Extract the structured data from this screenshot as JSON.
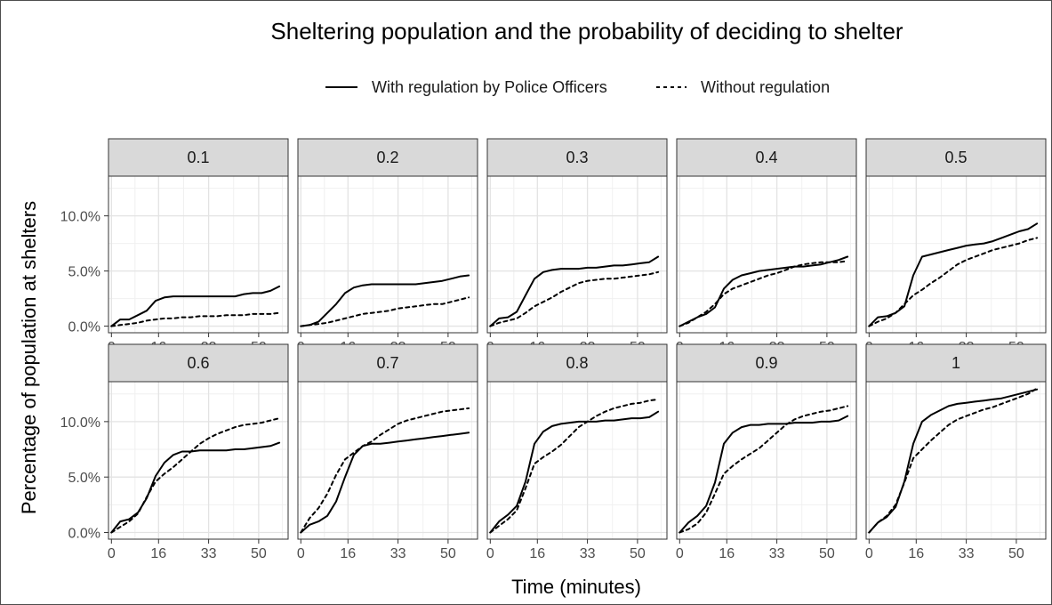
{
  "chart_data": {
    "type": "line",
    "title": "Sheltering population and the probability of deciding to shelter",
    "xlabel": "Time (minutes)",
    "ylabel": "Percentage of population at shelters",
    "x_ticks": [
      0,
      16,
      33,
      50
    ],
    "y_ticks": [
      0,
      5,
      10
    ],
    "y_tick_labels": [
      "0.0%",
      "5.0%",
      "10.0%"
    ],
    "xlim": [
      -1,
      60
    ],
    "ylim": [
      -0.6,
      13.6
    ],
    "grid": true,
    "legend_position": "top",
    "series_styles": [
      {
        "name": "With regulation by Police Officers",
        "dash": "solid",
        "color": "#000000"
      },
      {
        "name": "Without regulation",
        "dash": "dashed",
        "color": "#000000"
      }
    ],
    "x": [
      0,
      3,
      6,
      9,
      12,
      15,
      18,
      21,
      24,
      27,
      30,
      33,
      36,
      39,
      42,
      45,
      48,
      51,
      54,
      57
    ],
    "panels": [
      {
        "label": "0.1",
        "series": [
          {
            "name": "With regulation by Police Officers",
            "values": [
              0,
              0.6,
              0.6,
              1.0,
              1.4,
              2.3,
              2.6,
              2.7,
              2.7,
              2.7,
              2.7,
              2.7,
              2.7,
              2.7,
              2.7,
              2.9,
              3.0,
              3.0,
              3.2,
              3.6
            ]
          },
          {
            "name": "Without regulation",
            "values": [
              0,
              0.1,
              0.2,
              0.3,
              0.5,
              0.6,
              0.7,
              0.7,
              0.8,
              0.8,
              0.9,
              0.9,
              0.9,
              1.0,
              1.0,
              1.0,
              1.1,
              1.1,
              1.1,
              1.2
            ]
          }
        ]
      },
      {
        "label": "0.2",
        "series": [
          {
            "name": "With regulation by Police Officers",
            "values": [
              0,
              0.1,
              0.4,
              1.2,
              2.0,
              3.0,
              3.5,
              3.7,
              3.8,
              3.8,
              3.8,
              3.8,
              3.8,
              3.8,
              3.9,
              4.0,
              4.1,
              4.3,
              4.5,
              4.6
            ]
          },
          {
            "name": "Without regulation",
            "values": [
              0,
              0.1,
              0.2,
              0.3,
              0.5,
              0.7,
              0.9,
              1.1,
              1.2,
              1.3,
              1.4,
              1.6,
              1.7,
              1.8,
              1.9,
              2.0,
              2.0,
              2.2,
              2.4,
              2.6
            ]
          }
        ]
      },
      {
        "label": "0.3",
        "series": [
          {
            "name": "With regulation by Police Officers",
            "values": [
              0,
              0.7,
              0.8,
              1.3,
              2.8,
              4.3,
              4.9,
              5.1,
              5.2,
              5.2,
              5.2,
              5.3,
              5.3,
              5.4,
              5.5,
              5.5,
              5.6,
              5.7,
              5.8,
              6.3
            ]
          },
          {
            "name": "Without regulation",
            "values": [
              0,
              0.3,
              0.5,
              0.7,
              1.2,
              1.8,
              2.2,
              2.6,
              3.1,
              3.5,
              3.9,
              4.1,
              4.2,
              4.3,
              4.3,
              4.4,
              4.5,
              4.6,
              4.7,
              4.9
            ]
          }
        ]
      },
      {
        "label": "0.4",
        "series": [
          {
            "name": "With regulation by Police Officers",
            "values": [
              0,
              0.4,
              0.8,
              1.1,
              1.7,
              3.4,
              4.2,
              4.6,
              4.8,
              5.0,
              5.1,
              5.2,
              5.3,
              5.4,
              5.4,
              5.5,
              5.6,
              5.8,
              6.0,
              6.3
            ]
          },
          {
            "name": "Without regulation",
            "values": [
              0,
              0.3,
              0.8,
              1.3,
              2.0,
              2.9,
              3.4,
              3.7,
              4.0,
              4.3,
              4.6,
              4.8,
              5.1,
              5.4,
              5.6,
              5.7,
              5.8,
              5.8,
              5.8,
              5.9
            ]
          }
        ]
      },
      {
        "label": "0.5",
        "series": [
          {
            "name": "With regulation by Police Officers",
            "values": [
              0,
              0.8,
              0.9,
              1.2,
              1.8,
              4.6,
              6.3,
              6.5,
              6.7,
              6.9,
              7.1,
              7.3,
              7.4,
              7.5,
              7.7,
              8.0,
              8.3,
              8.6,
              8.8,
              9.3
            ]
          },
          {
            "name": "Without regulation",
            "values": [
              0,
              0.4,
              0.7,
              1.2,
              2.0,
              2.8,
              3.3,
              3.9,
              4.4,
              5.0,
              5.6,
              6.0,
              6.3,
              6.6,
              6.9,
              7.1,
              7.3,
              7.5,
              7.8,
              8.0
            ]
          }
        ]
      },
      {
        "label": "0.6",
        "series": [
          {
            "name": "With regulation by Police Officers",
            "values": [
              0,
              1.0,
              1.2,
              1.8,
              3.1,
              5.1,
              6.3,
              7.0,
              7.3,
              7.3,
              7.4,
              7.4,
              7.4,
              7.4,
              7.5,
              7.5,
              7.6,
              7.7,
              7.8,
              8.1
            ]
          },
          {
            "name": "Without regulation",
            "values": [
              0,
              0.5,
              1.0,
              1.7,
              3.2,
              4.6,
              5.3,
              5.9,
              6.6,
              7.3,
              8.0,
              8.5,
              8.9,
              9.2,
              9.5,
              9.7,
              9.8,
              9.9,
              10.1,
              10.3
            ]
          }
        ]
      },
      {
        "label": "0.7",
        "series": [
          {
            "name": "With regulation by Police Officers",
            "values": [
              0,
              0.7,
              1.0,
              1.5,
              2.8,
              5.0,
              7.0,
              7.8,
              8.0,
              8.0,
              8.1,
              8.2,
              8.3,
              8.4,
              8.5,
              8.6,
              8.7,
              8.8,
              8.9,
              9.0
            ]
          },
          {
            "name": "Without regulation",
            "values": [
              0,
              1.3,
              2.2,
              3.5,
              5.2,
              6.6,
              7.2,
              7.8,
              8.2,
              8.8,
              9.3,
              9.8,
              10.1,
              10.3,
              10.5,
              10.7,
              10.9,
              11.0,
              11.1,
              11.2
            ]
          }
        ]
      },
      {
        "label": "0.8",
        "series": [
          {
            "name": "With regulation by Police Officers",
            "values": [
              0,
              1.0,
              1.6,
              2.4,
              4.6,
              8.0,
              9.1,
              9.6,
              9.8,
              9.9,
              10.0,
              10.0,
              10.0,
              10.1,
              10.1,
              10.2,
              10.3,
              10.3,
              10.4,
              10.9
            ]
          },
          {
            "name": "Without regulation",
            "values": [
              0,
              0.6,
              1.2,
              2.0,
              4.0,
              6.2,
              6.8,
              7.3,
              7.9,
              8.7,
              9.5,
              10.0,
              10.5,
              10.9,
              11.2,
              11.4,
              11.6,
              11.7,
              11.9,
              12.0
            ]
          }
        ]
      },
      {
        "label": "0.9",
        "series": [
          {
            "name": "With regulation by Police Officers",
            "values": [
              0,
              0.9,
              1.5,
              2.4,
              4.5,
              8.0,
              9.0,
              9.5,
              9.7,
              9.7,
              9.8,
              9.8,
              9.8,
              9.9,
              9.9,
              9.9,
              10.0,
              10.0,
              10.1,
              10.5
            ]
          },
          {
            "name": "Without regulation",
            "values": [
              0,
              0.3,
              0.8,
              1.8,
              3.5,
              5.3,
              6.0,
              6.6,
              7.1,
              7.6,
              8.3,
              9.0,
              9.7,
              10.2,
              10.5,
              10.7,
              10.9,
              11.0,
              11.2,
              11.4
            ]
          }
        ]
      },
      {
        "label": "1",
        "series": [
          {
            "name": "With regulation by Police Officers",
            "values": [
              0,
              0.9,
              1.4,
              2.3,
              4.6,
              8.0,
              10.0,
              10.6,
              11.0,
              11.4,
              11.6,
              11.7,
              11.8,
              11.9,
              12.0,
              12.1,
              12.3,
              12.5,
              12.7,
              12.9
            ]
          },
          {
            "name": "Without regulation",
            "values": [
              0,
              0.9,
              1.5,
              2.5,
              4.5,
              6.7,
              7.5,
              8.3,
              9.0,
              9.7,
              10.2,
              10.5,
              10.8,
              11.1,
              11.3,
              11.6,
              11.9,
              12.2,
              12.5,
              13.0
            ]
          }
        ]
      }
    ]
  }
}
